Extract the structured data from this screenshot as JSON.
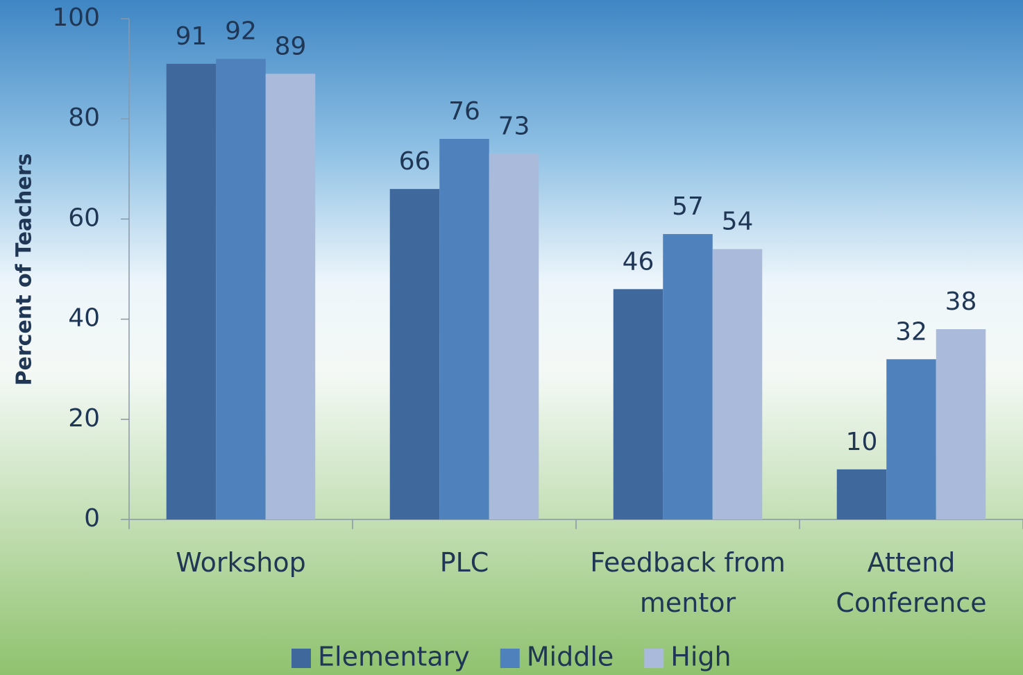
{
  "chart_data": {
    "type": "bar",
    "y_label": "Percent of Teachers",
    "categories": [
      "Workshop",
      "PLC",
      "Feedback from mentor",
      "Attend Conference"
    ],
    "series": [
      {
        "name": "Elementary",
        "color": "#3f689c",
        "values": [
          91,
          66,
          46,
          10
        ]
      },
      {
        "name": "Middle",
        "color": "#4f81bd",
        "values": [
          92,
          76,
          57,
          32
        ]
      },
      {
        "name": "High",
        "color": "#aabada",
        "values": [
          89,
          73,
          54,
          38
        ]
      }
    ],
    "ylim": [
      0,
      100
    ],
    "yticks": [
      0,
      20,
      40,
      60,
      80,
      100
    ],
    "grid": false,
    "legend": "bottom"
  }
}
